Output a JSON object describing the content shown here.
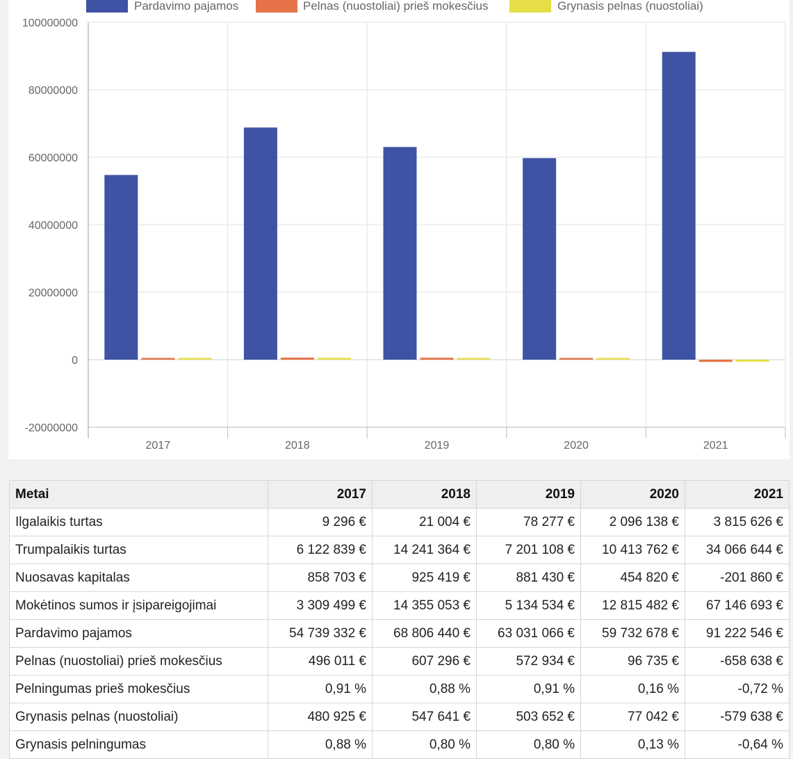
{
  "chart_data": {
    "type": "bar",
    "categories": [
      "2017",
      "2018",
      "2019",
      "2020",
      "2021"
    ],
    "series": [
      {
        "name": "Pardavimo pajamos",
        "color": "#3f53a4",
        "values": [
          54739332,
          68806440,
          63031066,
          59732678,
          91222546
        ]
      },
      {
        "name": "Pelnas (nuostoliai) prieš mokesčius",
        "color": "#e57347",
        "values": [
          496011,
          607296,
          572934,
          96735,
          -658638
        ]
      },
      {
        "name": "Grynasis pelnas (nuostoliai)",
        "color": "#e5de47",
        "values": [
          480925,
          547641,
          503652,
          77042,
          -579638
        ]
      }
    ],
    "y_ticks": [
      "100000000",
      "80000000",
      "60000000",
      "40000000",
      "20000000",
      "0",
      "-20000000"
    ],
    "ylim": [
      -20000000,
      100000000
    ],
    "grid": true,
    "legend": "top"
  },
  "table": {
    "header_label": "Metai",
    "years": [
      "2017",
      "2018",
      "2019",
      "2020",
      "2021"
    ],
    "rows": [
      {
        "label": "Ilgalaikis turtas",
        "values": [
          "9 296 €",
          "21 004 €",
          "78 277 €",
          "2 096 138 €",
          "3 815 626 €"
        ]
      },
      {
        "label": "Trumpalaikis turtas",
        "values": [
          "6 122 839 €",
          "14 241 364 €",
          "7 201 108 €",
          "10 413 762 €",
          "34 066 644 €"
        ]
      },
      {
        "label": "Nuosavas kapitalas",
        "values": [
          "858 703 €",
          "925 419 €",
          "881 430 €",
          "454 820 €",
          "-201 860 €"
        ]
      },
      {
        "label": "Mokėtinos sumos ir įsipareigojimai",
        "values": [
          "3 309 499 €",
          "14 355 053 €",
          "5 134 534 €",
          "12 815 482 €",
          "67 146 693 €"
        ]
      },
      {
        "label": "Pardavimo pajamos",
        "values": [
          "54 739 332 €",
          "68 806 440 €",
          "63 031 066 €",
          "59 732 678 €",
          "91 222 546 €"
        ]
      },
      {
        "label": "Pelnas (nuostoliai) prieš mokesčius",
        "values": [
          "496 011 €",
          "607 296 €",
          "572 934 €",
          "96 735 €",
          "-658 638 €"
        ]
      },
      {
        "label": "Pelningumas prieš mokesčius",
        "values": [
          "0,91 %",
          "0,88 %",
          "0,91 %",
          "0,16 %",
          "-0,72 %"
        ]
      },
      {
        "label": "Grynasis pelnas (nuostoliai)",
        "values": [
          "480 925 €",
          "547 641 €",
          "503 652 €",
          "77 042 €",
          "-579 638 €"
        ]
      },
      {
        "label": "Grynasis pelningumas",
        "values": [
          "0,88 %",
          "0,80 %",
          "0,80 %",
          "0,13 %",
          "-0,64 %"
        ]
      }
    ]
  }
}
